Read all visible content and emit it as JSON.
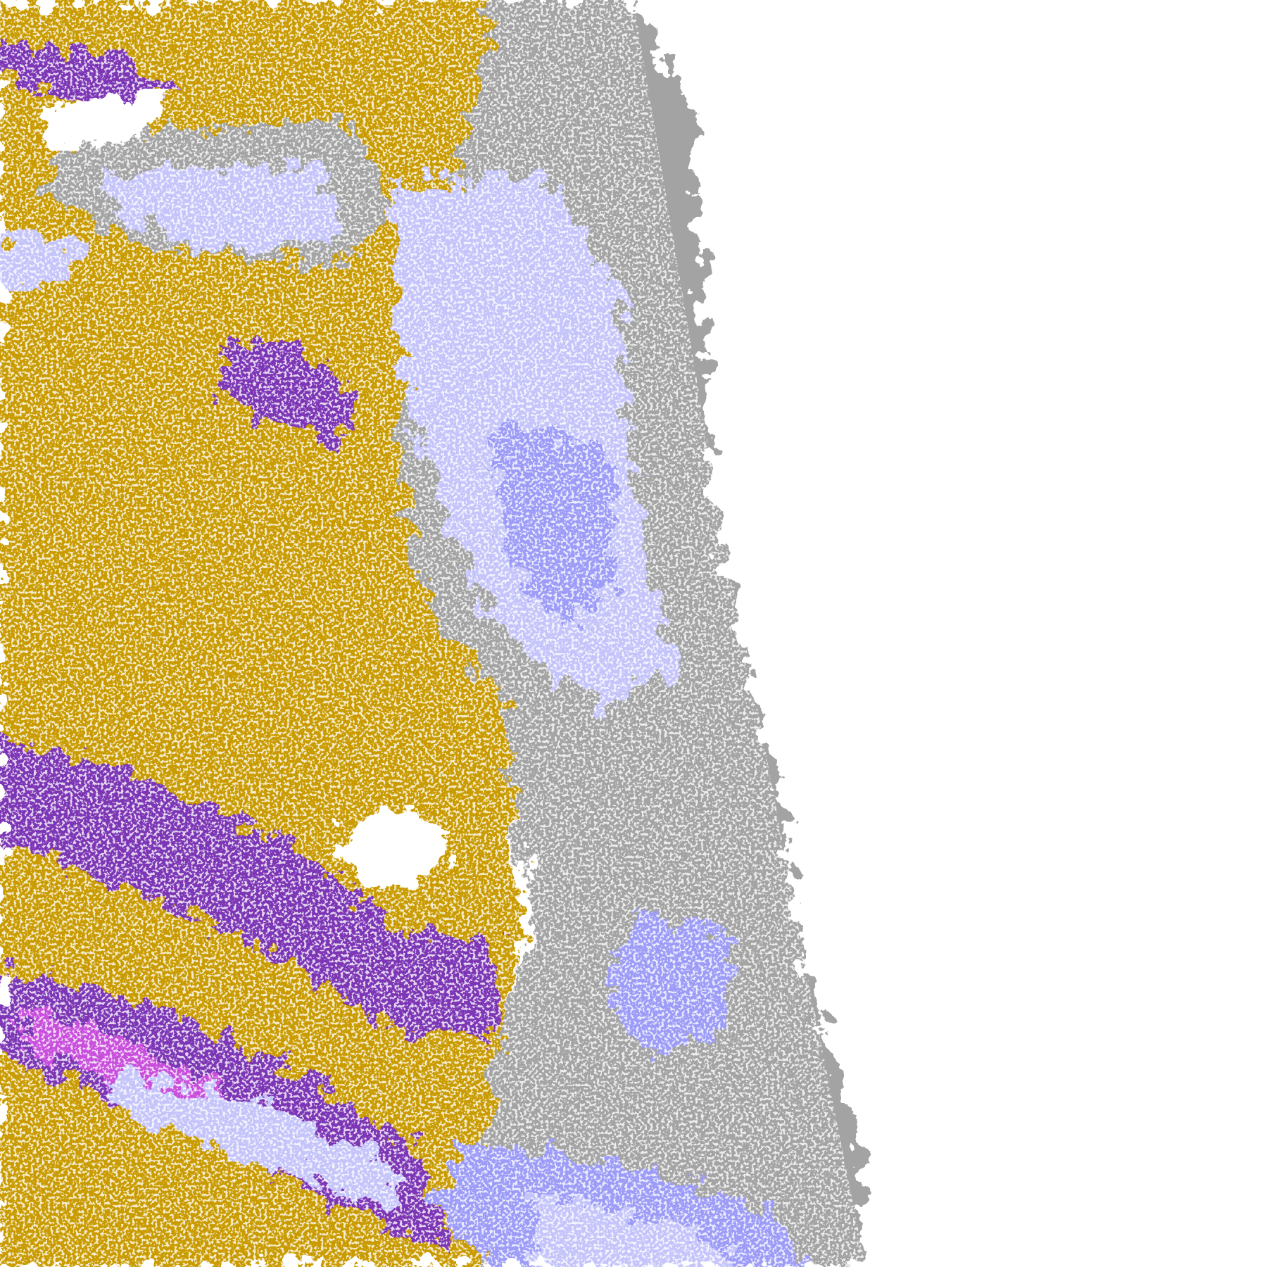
{
  "palette": {
    "background": "#ffffff",
    "gold": "#c99b05",
    "purple": "#7b35b5",
    "magenta": "#c84fdc",
    "lavender": "#c4c4fb",
    "periwinkle": "#9c9cf8",
    "gray": "#a3a3a3",
    "dark_gray": "#8a8a8a"
  }
}
